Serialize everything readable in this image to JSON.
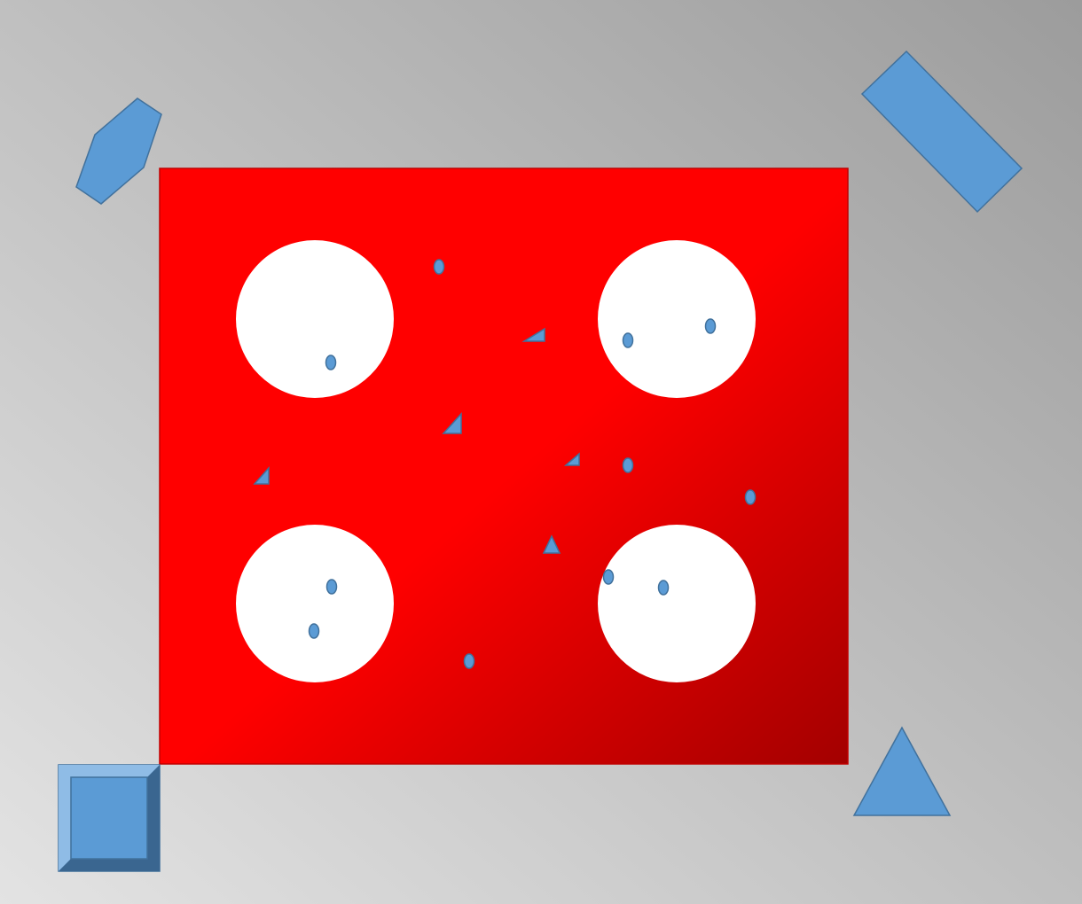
{
  "background": {
    "gradient_light": "#e3e3e3",
    "gradient_dark": "#9c9c9c"
  },
  "board": {
    "gradient_bright": "#ff0000",
    "gradient_dark": "#a30000",
    "border_color": "#c00000"
  },
  "holes": {
    "count": 4,
    "color": "#ffffff"
  },
  "shape_style": {
    "fill": "#5b9bd5",
    "stroke": "#41719c",
    "bevel_light": "#8fbce6",
    "bevel_dark": "#3a6690"
  },
  "corner_pieces": [
    {
      "name": "hexagon-piece",
      "shape": "hexagon"
    },
    {
      "name": "rectangle-piece",
      "shape": "rotated-rectangle"
    },
    {
      "name": "beveled-square-piece",
      "shape": "bevel-square"
    },
    {
      "name": "triangle-piece",
      "shape": "isosceles-triangle"
    }
  ],
  "small_pieces": {
    "dot_count": 11,
    "triangle_count": 5
  }
}
